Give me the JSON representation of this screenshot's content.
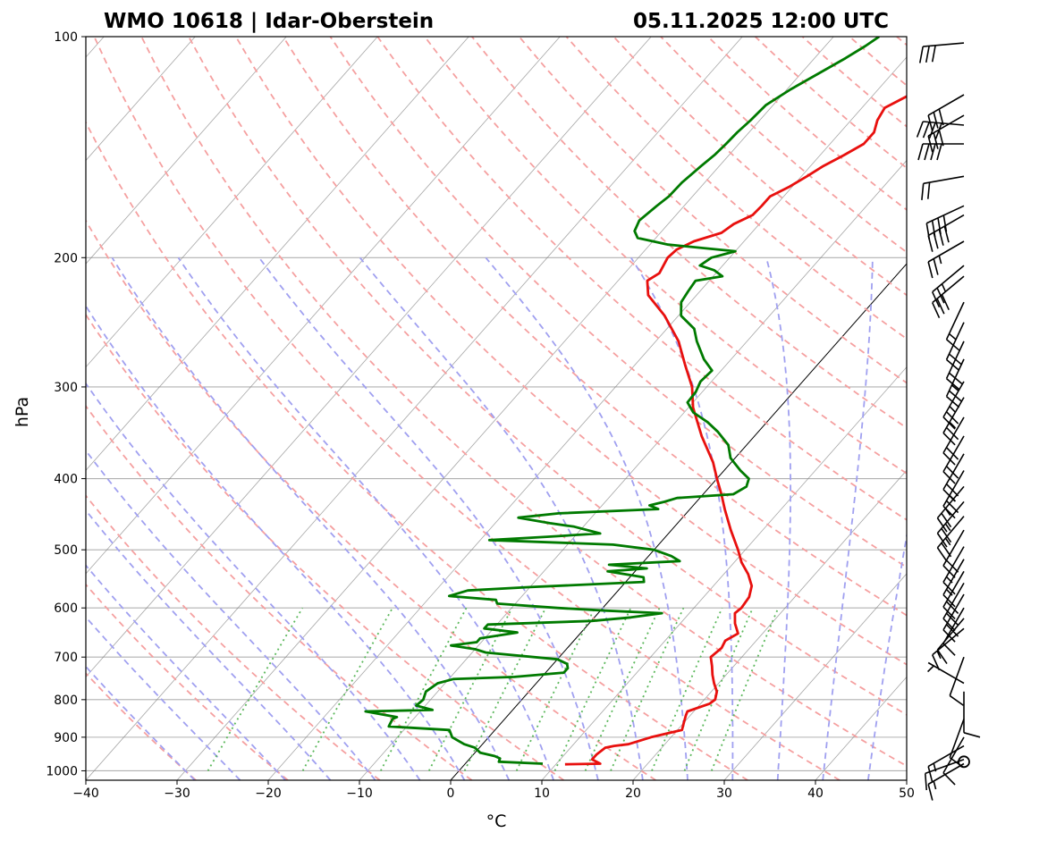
{
  "chart_data": {
    "type": "skew-t log-p sounding",
    "title_left": "WMO 10618 | Idar-Oberstein",
    "title_right": "05.11.2025 12:00 UTC",
    "xlabel": "°C",
    "ylabel": "hPa",
    "xlim": [
      -40,
      50
    ],
    "ylim": [
      1030,
      100
    ],
    "xticks": [
      -40,
      -30,
      -20,
      -10,
      0,
      10,
      20,
      30,
      40,
      50
    ],
    "xtick_labels": [
      "−40",
      "−30",
      "−20",
      "−10",
      "0",
      "10",
      "20",
      "30",
      "40",
      "50"
    ],
    "yticks": [
      1000,
      900,
      800,
      700,
      600,
      500,
      400,
      300,
      200,
      100
    ],
    "ytick_labels": [
      "1000",
      "900",
      "800",
      "700",
      "600",
      "500",
      "400",
      "300",
      "200",
      "100"
    ],
    "grid": true,
    "colors": {
      "temperature": "#e8100e",
      "dewpoint": "#007a00",
      "dry_adiabat": "#f5a0a0",
      "moist_adiabat": "#a0a0f0",
      "mixing_ratio": "#5cb85c",
      "isotherm": "#808080",
      "zero_isotherm": "#000000"
    },
    "temperature": [
      {
        "p": 980,
        "t": 11.0
      },
      {
        "p": 978,
        "t": 14.8
      },
      {
        "p": 965,
        "t": 13.5
      },
      {
        "p": 950,
        "t": 13.5
      },
      {
        "p": 930,
        "t": 13.8
      },
      {
        "p": 925,
        "t": 14.6
      },
      {
        "p": 920,
        "t": 16.0
      },
      {
        "p": 900,
        "t": 17.8
      },
      {
        "p": 880,
        "t": 20.5
      },
      {
        "p": 860,
        "t": 20.0
      },
      {
        "p": 840,
        "t": 19.5
      },
      {
        "p": 830,
        "t": 19.3
      },
      {
        "p": 810,
        "t": 21.0
      },
      {
        "p": 800,
        "t": 21.2
      },
      {
        "p": 780,
        "t": 20.6
      },
      {
        "p": 760,
        "t": 19.5
      },
      {
        "p": 740,
        "t": 18.5
      },
      {
        "p": 720,
        "t": 17.6
      },
      {
        "p": 700,
        "t": 16.6
      },
      {
        "p": 680,
        "t": 16.9
      },
      {
        "p": 665,
        "t": 16.6
      },
      {
        "p": 650,
        "t": 17.3
      },
      {
        "p": 630,
        "t": 16.0
      },
      {
        "p": 610,
        "t": 15.0
      },
      {
        "p": 600,
        "t": 15.2
      },
      {
        "p": 580,
        "t": 15.0
      },
      {
        "p": 560,
        "t": 14.2
      },
      {
        "p": 540,
        "t": 12.7
      },
      {
        "p": 520,
        "t": 10.8
      },
      {
        "p": 500,
        "t": 9.2
      },
      {
        "p": 470,
        "t": 6.5
      },
      {
        "p": 440,
        "t": 3.8
      },
      {
        "p": 420,
        "t": 2.0
      },
      {
        "p": 400,
        "t": 0.0
      },
      {
        "p": 380,
        "t": -2.0
      },
      {
        "p": 350,
        "t": -5.8
      },
      {
        "p": 320,
        "t": -9.5
      },
      {
        "p": 300,
        "t": -11.6
      },
      {
        "p": 280,
        "t": -14.5
      },
      {
        "p": 260,
        "t": -17.5
      },
      {
        "p": 240,
        "t": -21.5
      },
      {
        "p": 225,
        "t": -25.3
      },
      {
        "p": 215,
        "t": -26.8
      },
      {
        "p": 210,
        "t": -26.2
      },
      {
        "p": 200,
        "t": -26.8
      },
      {
        "p": 195,
        "t": -26.6
      },
      {
        "p": 190,
        "t": -25.5
      },
      {
        "p": 185,
        "t": -23.3
      },
      {
        "p": 180,
        "t": -22.8
      },
      {
        "p": 175,
        "t": -21.6
      },
      {
        "p": 170,
        "t": -21.5
      },
      {
        "p": 165,
        "t": -21.5
      },
      {
        "p": 160,
        "t": -20.3
      },
      {
        "p": 155,
        "t": -19.4
      },
      {
        "p": 150,
        "t": -18.6
      },
      {
        "p": 145,
        "t": -17.4
      },
      {
        "p": 140,
        "t": -16.3
      },
      {
        "p": 135,
        "t": -16.3
      },
      {
        "p": 130,
        "t": -17.1
      },
      {
        "p": 125,
        "t": -17.5
      },
      {
        "p": 120,
        "t": -16.0
      },
      {
        "p": 115,
        "t": -15.7
      },
      {
        "p": 110,
        "t": -15.0
      },
      {
        "p": 105,
        "t": -14.2
      },
      {
        "p": 102,
        "t": -13.0
      },
      {
        "p": 100,
        "t": -11.0
      }
    ],
    "dewpoint": [
      {
        "p": 978,
        "t": 8.5
      },
      {
        "p": 972,
        "t": 3.5
      },
      {
        "p": 962,
        "t": 3.3
      },
      {
        "p": 955,
        "t": 2.5
      },
      {
        "p": 945,
        "t": 0.6
      },
      {
        "p": 930,
        "t": -0.5
      },
      {
        "p": 920,
        "t": -2.0
      },
      {
        "p": 900,
        "t": -4.0
      },
      {
        "p": 880,
        "t": -5.0
      },
      {
        "p": 870,
        "t": -12.0
      },
      {
        "p": 850,
        "t": -12.3
      },
      {
        "p": 845,
        "t": -12.0
      },
      {
        "p": 830,
        "t": -16.0
      },
      {
        "p": 826,
        "t": -8.8
      },
      {
        "p": 815,
        "t": -11.0
      },
      {
        "p": 800,
        "t": -10.8
      },
      {
        "p": 780,
        "t": -11.3
      },
      {
        "p": 760,
        "t": -10.8
      },
      {
        "p": 750,
        "t": -9.5
      },
      {
        "p": 745,
        "t": -3.0
      },
      {
        "p": 735,
        "t": 2.0
      },
      {
        "p": 725,
        "t": 2.0
      },
      {
        "p": 715,
        "t": 1.5
      },
      {
        "p": 705,
        "t": 0.0
      },
      {
        "p": 690,
        "t": -8.5
      },
      {
        "p": 683,
        "t": -10.0
      },
      {
        "p": 675,
        "t": -13.0
      },
      {
        "p": 668,
        "t": -10.5
      },
      {
        "p": 660,
        "t": -10.5
      },
      {
        "p": 648,
        "t": -7.0
      },
      {
        "p": 640,
        "t": -11.0
      },
      {
        "p": 632,
        "t": -11.0
      },
      {
        "p": 625,
        "t": 0.0
      },
      {
        "p": 618,
        "t": 4.0
      },
      {
        "p": 610,
        "t": 7.0
      },
      {
        "p": 605,
        "t": 0.5
      },
      {
        "p": 600,
        "t": -5.0
      },
      {
        "p": 592,
        "t": -12.0
      },
      {
        "p": 585,
        "t": -12.5
      },
      {
        "p": 578,
        "t": -18.0
      },
      {
        "p": 568,
        "t": -16.5
      },
      {
        "p": 562,
        "t": -10.0
      },
      {
        "p": 553,
        "t": 2.0
      },
      {
        "p": 545,
        "t": 1.5
      },
      {
        "p": 535,
        "t": -3.0
      },
      {
        "p": 530,
        "t": 1.0
      },
      {
        "p": 524,
        "t": -3.5
      },
      {
        "p": 518,
        "t": 3.9
      },
      {
        "p": 510,
        "t": 2.5
      },
      {
        "p": 500,
        "t": 0.0
      },
      {
        "p": 492,
        "t": -5.0
      },
      {
        "p": 485,
        "t": -19.0
      },
      {
        "p": 480,
        "t": -13.0
      },
      {
        "p": 475,
        "t": -7.5
      },
      {
        "p": 465,
        "t": -11.0
      },
      {
        "p": 460,
        "t": -14.0
      },
      {
        "p": 452,
        "t": -18.0
      },
      {
        "p": 446,
        "t": -14.0
      },
      {
        "p": 440,
        "t": -3.5
      },
      {
        "p": 435,
        "t": -4.8
      },
      {
        "p": 430,
        "t": -3.5
      },
      {
        "p": 425,
        "t": -2.5
      },
      {
        "p": 420,
        "t": 3.3
      },
      {
        "p": 410,
        "t": 4.0
      },
      {
        "p": 400,
        "t": 3.5
      },
      {
        "p": 390,
        "t": 1.8
      },
      {
        "p": 375,
        "t": -0.5
      },
      {
        "p": 360,
        "t": -2.0
      },
      {
        "p": 345,
        "t": -4.5
      },
      {
        "p": 335,
        "t": -6.5
      },
      {
        "p": 325,
        "t": -9.0
      },
      {
        "p": 315,
        "t": -10.6
      },
      {
        "p": 305,
        "t": -10.7
      },
      {
        "p": 295,
        "t": -11.2
      },
      {
        "p": 285,
        "t": -11.0
      },
      {
        "p": 275,
        "t": -13.0
      },
      {
        "p": 260,
        "t": -15.5
      },
      {
        "p": 250,
        "t": -17.0
      },
      {
        "p": 240,
        "t": -19.7
      },
      {
        "p": 230,
        "t": -21.0
      },
      {
        "p": 222,
        "t": -21.3
      },
      {
        "p": 215,
        "t": -21.5
      },
      {
        "p": 212,
        "t": -19.0
      },
      {
        "p": 208,
        "t": -20.5
      },
      {
        "p": 205,
        "t": -22.5
      },
      {
        "p": 200,
        "t": -22.0
      },
      {
        "p": 196,
        "t": -20.0
      },
      {
        "p": 192,
        "t": -28.0
      },
      {
        "p": 188,
        "t": -32.0
      },
      {
        "p": 184,
        "t": -33.0
      },
      {
        "p": 178,
        "t": -33.5
      },
      {
        "p": 170,
        "t": -33.0
      },
      {
        "p": 165,
        "t": -32.6
      },
      {
        "p": 158,
        "t": -32.5
      },
      {
        "p": 150,
        "t": -32.0
      },
      {
        "p": 145,
        "t": -31.6
      },
      {
        "p": 140,
        "t": -31.4
      },
      {
        "p": 135,
        "t": -31.3
      },
      {
        "p": 130,
        "t": -31.0
      },
      {
        "p": 124,
        "t": -30.8
      },
      {
        "p": 118,
        "t": -29.6
      },
      {
        "p": 112,
        "t": -28.0
      },
      {
        "p": 107,
        "t": -26.6
      },
      {
        "p": 103,
        "t": -25.6
      },
      {
        "p": 100,
        "t": -25.0
      }
    ],
    "wind_barbs_kt": [
      {
        "p": 978,
        "dir": 240,
        "spd": 15
      },
      {
        "p": 965,
        "dir": 250,
        "spd": 10
      },
      {
        "p": 925,
        "dir": 240,
        "spd": 15
      },
      {
        "p": 900,
        "dir": 210,
        "spd": 10
      },
      {
        "p": 850,
        "dir": 200,
        "spd": 10
      },
      {
        "p": 780,
        "dir": 180,
        "spd": 10
      },
      {
        "p": 760,
        "dir": 300,
        "spd": 5
      },
      {
        "p": 700,
        "dir": 200,
        "spd": 10
      },
      {
        "p": 640,
        "dir": 230,
        "spd": 15
      },
      {
        "p": 620,
        "dir": 220,
        "spd": 10
      },
      {
        "p": 600,
        "dir": 210,
        "spd": 10
      },
      {
        "p": 575,
        "dir": 210,
        "spd": 20
      },
      {
        "p": 555,
        "dir": 210,
        "spd": 20
      },
      {
        "p": 535,
        "dir": 210,
        "spd": 20
      },
      {
        "p": 515,
        "dir": 210,
        "spd": 15
      },
      {
        "p": 495,
        "dir": 210,
        "spd": 15
      },
      {
        "p": 470,
        "dir": 210,
        "spd": 20
      },
      {
        "p": 450,
        "dir": 220,
        "spd": 25
      },
      {
        "p": 430,
        "dir": 220,
        "spd": 25
      },
      {
        "p": 410,
        "dir": 220,
        "spd": 25
      },
      {
        "p": 390,
        "dir": 210,
        "spd": 25
      },
      {
        "p": 370,
        "dir": 210,
        "spd": 20
      },
      {
        "p": 350,
        "dir": 210,
        "spd": 20
      },
      {
        "p": 330,
        "dir": 210,
        "spd": 20
      },
      {
        "p": 310,
        "dir": 210,
        "spd": 25
      },
      {
        "p": 295,
        "dir": 210,
        "spd": 25
      },
      {
        "p": 275,
        "dir": 205,
        "spd": 25
      },
      {
        "p": 260,
        "dir": 205,
        "spd": 20
      },
      {
        "p": 245,
        "dir": 205,
        "spd": 20
      },
      {
        "p": 230,
        "dir": 205,
        "spd": 15
      },
      {
        "p": 212,
        "dir": 230,
        "spd": 30
      },
      {
        "p": 205,
        "dir": 230,
        "spd": 25
      },
      {
        "p": 190,
        "dir": 240,
        "spd": 25
      },
      {
        "p": 175,
        "dir": 240,
        "spd": 40
      },
      {
        "p": 170,
        "dir": 245,
        "spd": 40
      },
      {
        "p": 155,
        "dir": 260,
        "spd": 20
      },
      {
        "p": 140,
        "dir": 270,
        "spd": 40
      },
      {
        "p": 132,
        "dir": 275,
        "spd": 40
      },
      {
        "p": 128,
        "dir": 240,
        "spd": 30
      },
      {
        "p": 120,
        "dir": 240,
        "spd": 30
      },
      {
        "p": 102,
        "dir": 265,
        "spd": 30
      }
    ],
    "calm_marker": "O"
  }
}
